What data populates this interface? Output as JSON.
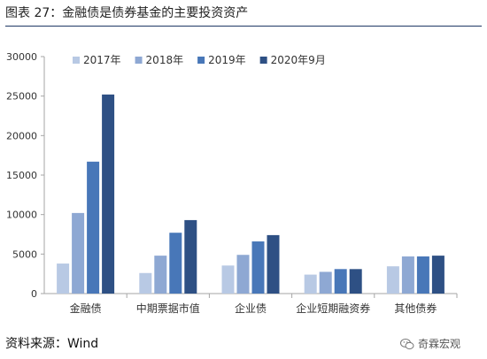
{
  "title": "图表 27：金融债是债券基金的主要投资资产",
  "source": "资料来源：Wind",
  "watermark": "奇霖宏观",
  "chart_data": {
    "type": "bar",
    "categories": [
      "金融债",
      "中期票据市值",
      "企业债",
      "企业短期融资券",
      "其他债券"
    ],
    "series": [
      {
        "name": "2017年",
        "values": [
          3800,
          2600,
          3550,
          2400,
          3450
        ],
        "color": "#b8c9e4"
      },
      {
        "name": "2018年",
        "values": [
          10200,
          4800,
          4900,
          2750,
          4700
        ],
        "color": "#8ea8d3"
      },
      {
        "name": "2019年",
        "values": [
          16700,
          7700,
          6600,
          3100,
          4700
        ],
        "color": "#4877b8"
      },
      {
        "name": "2020年9月",
        "values": [
          25200,
          9300,
          7400,
          3100,
          4800
        ],
        "color": "#2e5084"
      }
    ],
    "yticks": [
      0,
      5000,
      10000,
      15000,
      20000,
      25000,
      30000
    ],
    "ylim": [
      0,
      30000
    ],
    "legend": "top",
    "grid": false
  }
}
